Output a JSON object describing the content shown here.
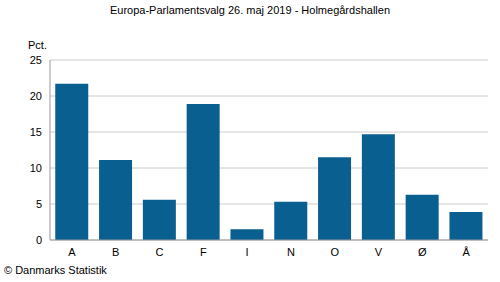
{
  "chart_data": {
    "type": "bar",
    "title": "Europa-Parlamentsvalg 26. maj 2019 - Holmegårdshallen",
    "ylabel": "Pct.",
    "annotations": [
      "© Danmarks Statistik"
    ],
    "categories": [
      "A",
      "B",
      "C",
      "F",
      "I",
      "N",
      "O",
      "V",
      "Ø",
      "Å"
    ],
    "values": [
      21.7,
      11.1,
      5.6,
      18.9,
      1.5,
      5.3,
      11.5,
      14.7,
      6.3,
      3.9
    ],
    "color": "#0a5f91",
    "ylim": [
      0,
      25
    ],
    "yticks": [
      0,
      5,
      10,
      15,
      20,
      25
    ],
    "grid": true
  }
}
